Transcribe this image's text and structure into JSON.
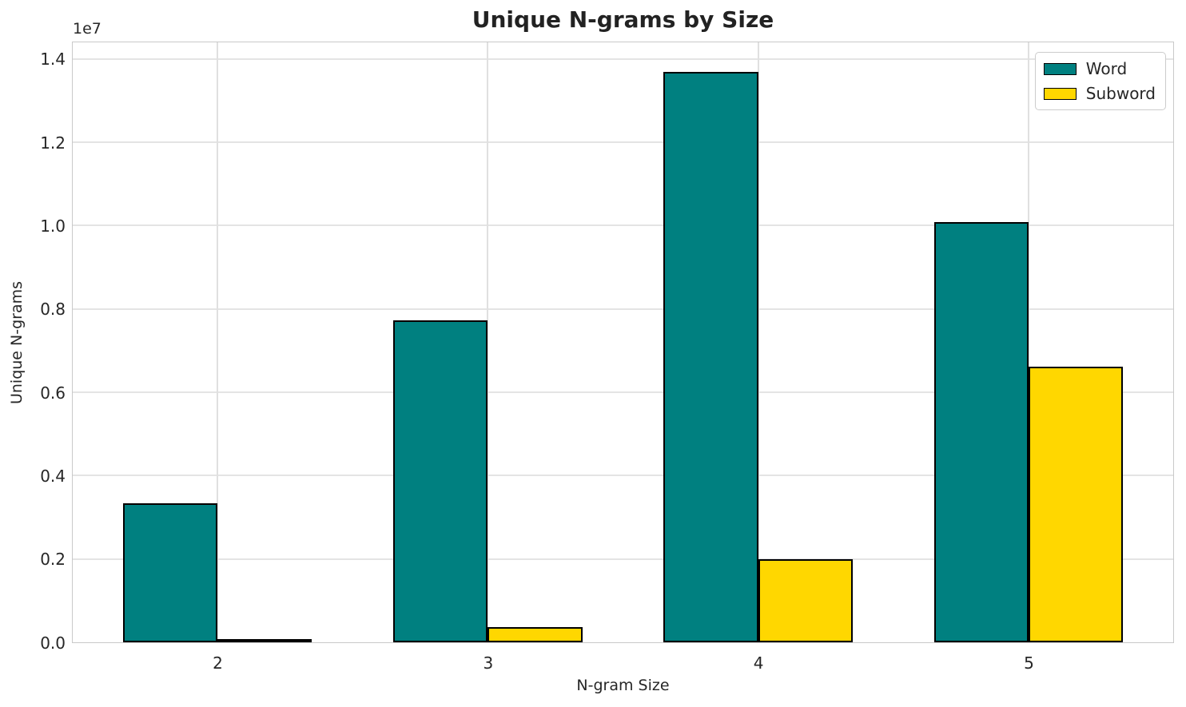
{
  "chart_data": {
    "type": "bar",
    "title": "Unique N-grams by Size",
    "xlabel": "N-gram Size",
    "ylabel": "Unique N-grams",
    "y_offset_label": "1e7",
    "categories": [
      "2",
      "3",
      "4",
      "5"
    ],
    "series": [
      {
        "name": "Word",
        "color": "#008080",
        "values": [
          3340000,
          7730000,
          13700000,
          10080000
        ]
      },
      {
        "name": "Subword",
        "color": "#FFD700",
        "values": [
          40000,
          360000,
          2000000,
          6620000
        ]
      }
    ],
    "bar_width_data_units": 0.35,
    "bar_edge_color": "#000000",
    "xlim": [
      1.465,
      5.535
    ],
    "ylim": [
      0,
      14400000
    ],
    "yticks": [
      0,
      2000000,
      4000000,
      6000000,
      8000000,
      10000000,
      12000000,
      14000000
    ],
    "ytick_labels": [
      "0.0",
      "0.2",
      "0.4",
      "0.6",
      "0.8",
      "1.0",
      "1.2",
      "1.4"
    ],
    "grid": true,
    "legend_position": "upper right",
    "legend_entries": [
      "Word",
      "Subword"
    ]
  }
}
